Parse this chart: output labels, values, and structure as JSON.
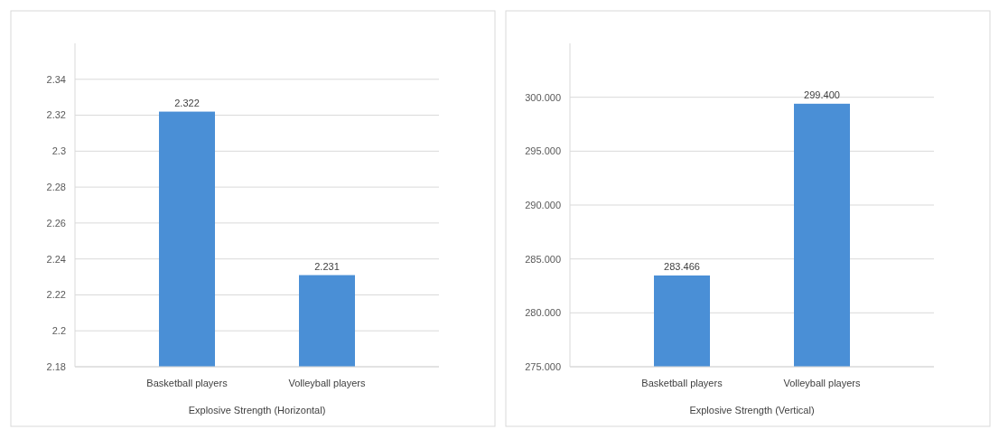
{
  "chart_data": [
    {
      "type": "bar",
      "xlabel": "Explosive Strength (Horizontal)",
      "categories": [
        "Basketball players",
        "Volleyball players"
      ],
      "series": [
        {
          "color": "#4a8fd6",
          "values": [
            2.322,
            2.231
          ],
          "value_labels": [
            "2.322",
            "2.231"
          ]
        }
      ],
      "ylim": [
        2.18,
        2.36
      ],
      "yticks": [
        2.18,
        2.2,
        2.22,
        2.24,
        2.26,
        2.28,
        2.3,
        2.32,
        2.34
      ],
      "grid": "y"
    },
    {
      "type": "bar",
      "xlabel": "Explosive Strength (Vertical)",
      "categories": [
        "Basketball players",
        "Volleyball players"
      ],
      "series": [
        {
          "color": "#4a8fd6",
          "values": [
            283.466,
            299.4
          ],
          "value_labels": [
            "283.466",
            "299.400"
          ]
        }
      ],
      "ylim": [
        275,
        305
      ],
      "yticks": [
        {
          "value": 275,
          "label": "275.000"
        },
        {
          "value": 280,
          "label": "280.000"
        },
        {
          "value": 285,
          "label": "285.000"
        },
        {
          "value": 290,
          "label": "290.000"
        },
        {
          "value": 295,
          "label": "295.000"
        },
        {
          "value": 300,
          "label": "300.000"
        }
      ],
      "grid": "y"
    }
  ]
}
